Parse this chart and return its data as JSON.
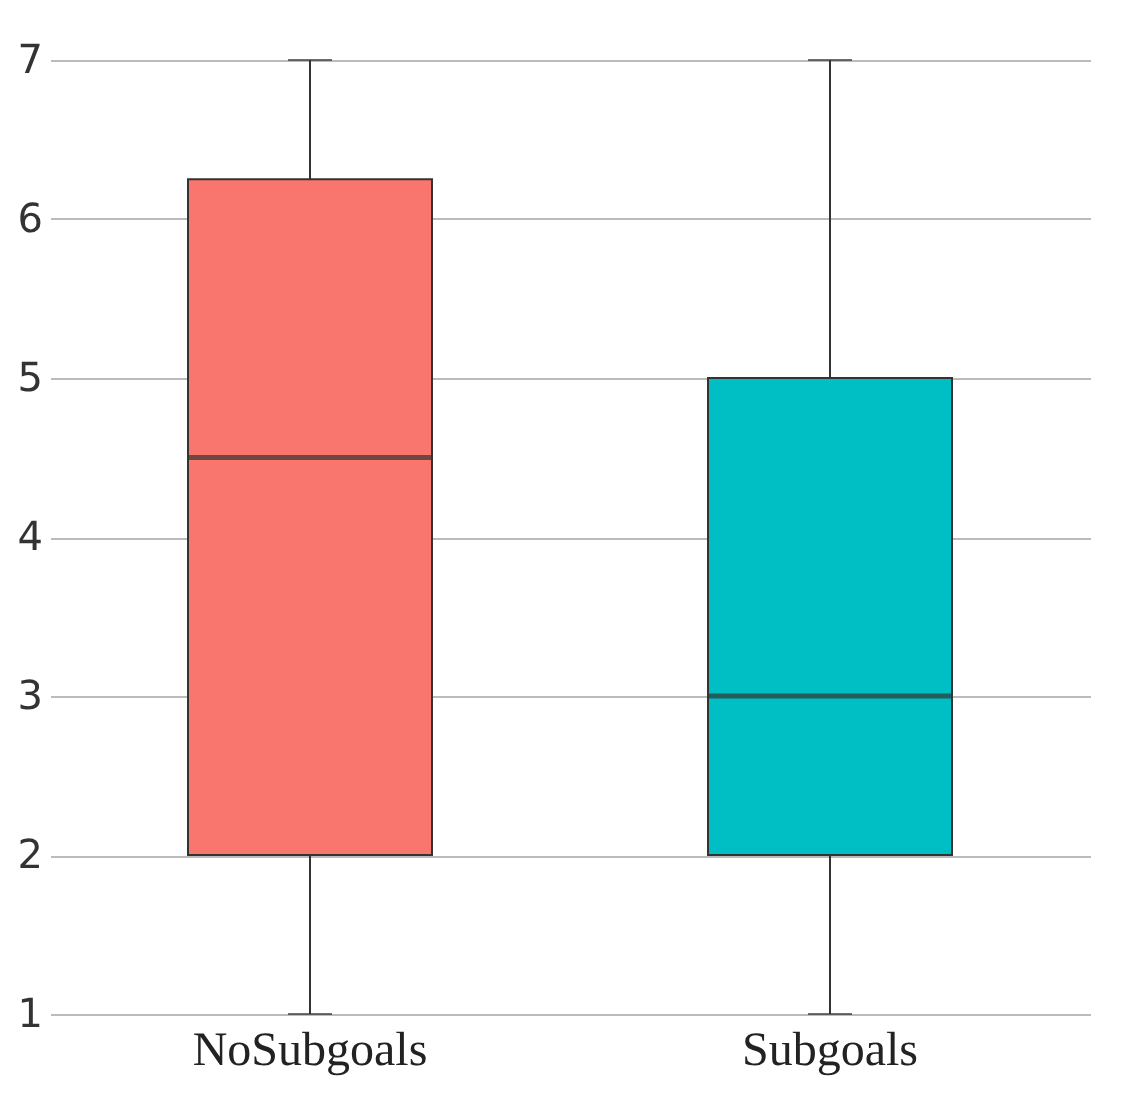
{
  "chart_data": {
    "type": "box",
    "categories": [
      "NoSubgoals",
      "Subgoals"
    ],
    "boxes": [
      {
        "low": 1,
        "q1": 2,
        "median": 4.5,
        "q3": 6.25,
        "high": 7
      },
      {
        "low": 1,
        "q1": 2,
        "median": 3,
        "q3": 5,
        "high": 7
      }
    ],
    "colors": [
      "#f8766d",
      "#00bfc4"
    ],
    "ylim": [
      1,
      7
    ],
    "yticks": [
      1,
      2,
      3,
      4,
      5,
      6,
      7
    ],
    "grid": "y"
  }
}
